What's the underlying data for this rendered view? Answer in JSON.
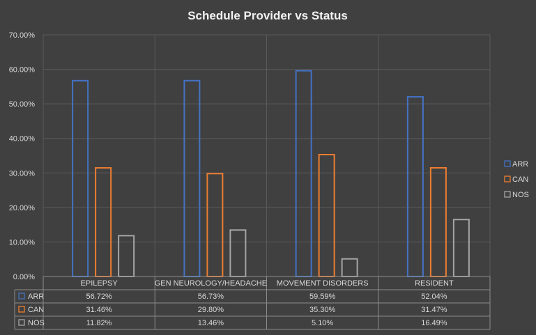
{
  "chart_data": {
    "type": "bar",
    "title": "Schedule Provider vs Status",
    "categories": [
      "EPILEPSY",
      "GEN NEUROLOGY/HEADACHE",
      "MOVEMENT DISORDERS",
      "RESIDENT"
    ],
    "series": [
      {
        "name": "ARR",
        "color": "#4472c4",
        "values": [
          56.72,
          56.73,
          59.59,
          52.04
        ],
        "labels": [
          "56.72%",
          "56.73%",
          "59.59%",
          "52.04%"
        ]
      },
      {
        "name": "CAN",
        "color": "#ed7d31",
        "values": [
          31.46,
          29.8,
          35.3,
          31.47
        ],
        "labels": [
          "31.46%",
          "29.80%",
          "35.30%",
          "31.47%"
        ]
      },
      {
        "name": "NOS",
        "color": "#a5a5a5",
        "values": [
          11.82,
          13.46,
          5.1,
          16.49
        ],
        "labels": [
          "11.82%",
          "13.46%",
          "5.10%",
          "16.49%"
        ]
      }
    ],
    "ylim": [
      0,
      70
    ],
    "yticks": [
      "0.00%",
      "10.00%",
      "20.00%",
      "30.00%",
      "40.00%",
      "50.00%",
      "60.00%",
      "70.00%"
    ],
    "legend_position": "right",
    "data_table": true,
    "grid": true
  }
}
